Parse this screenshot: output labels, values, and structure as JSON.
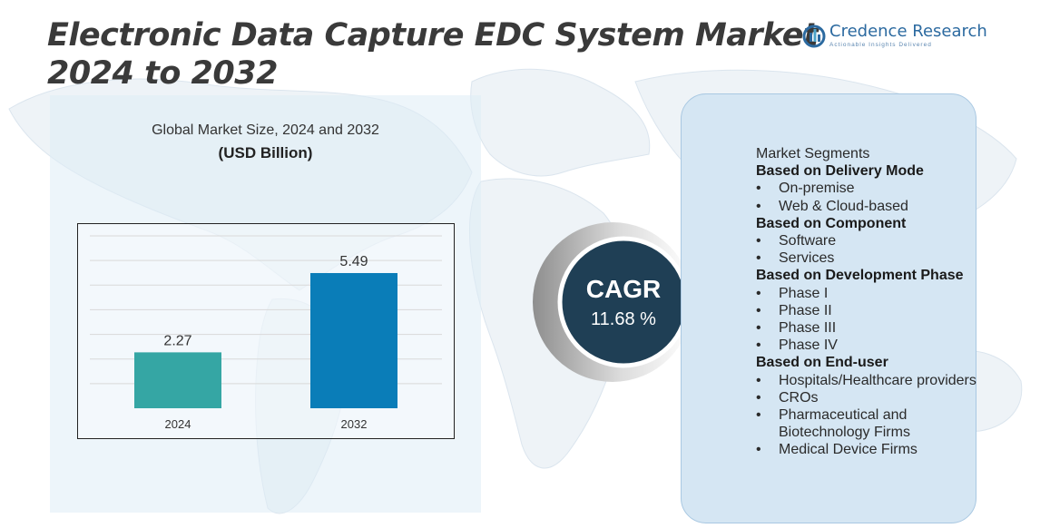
{
  "header": {
    "title_line1": "Electronic Data Capture EDC System Market",
    "title_line2": "2024 to 2032"
  },
  "logo": {
    "name": "Credence Research",
    "tagline": "Actionable Insights Delivered",
    "icon": "credence-logo-icon"
  },
  "chart_data": {
    "type": "bar",
    "title": "Global Market Size, 2024 and 2032",
    "subtitle": "(USD Billion)",
    "categories": [
      "2024",
      "2032"
    ],
    "values": [
      2.27,
      5.49
    ],
    "data_labels": [
      "2.27",
      "5.49"
    ],
    "colors": [
      "#35a6a4",
      "#0a7db8"
    ],
    "ylim": [
      0,
      7
    ],
    "grid": true,
    "legend": "none"
  },
  "cagr": {
    "label": "CAGR",
    "value": "11.68 %",
    "circle_color": "#1f3f55"
  },
  "segments": {
    "heading": "Market Segments",
    "groups": [
      {
        "title": "Based on Delivery Mode",
        "items": [
          "On-premise",
          "Web & Cloud-based"
        ]
      },
      {
        "title": "Based on Component",
        "items": [
          "Software",
          "Services"
        ]
      },
      {
        "title": "Based on Development Phase",
        "items": [
          "Phase I",
          "Phase II",
          "Phase III",
          "Phase IV"
        ]
      },
      {
        "title": "Based on End-user",
        "items": [
          "Hospitals/Healthcare providers",
          "CROs",
          "Pharmaceutical and Biotechnology Firms",
          "Medical Device Firms"
        ]
      }
    ]
  }
}
